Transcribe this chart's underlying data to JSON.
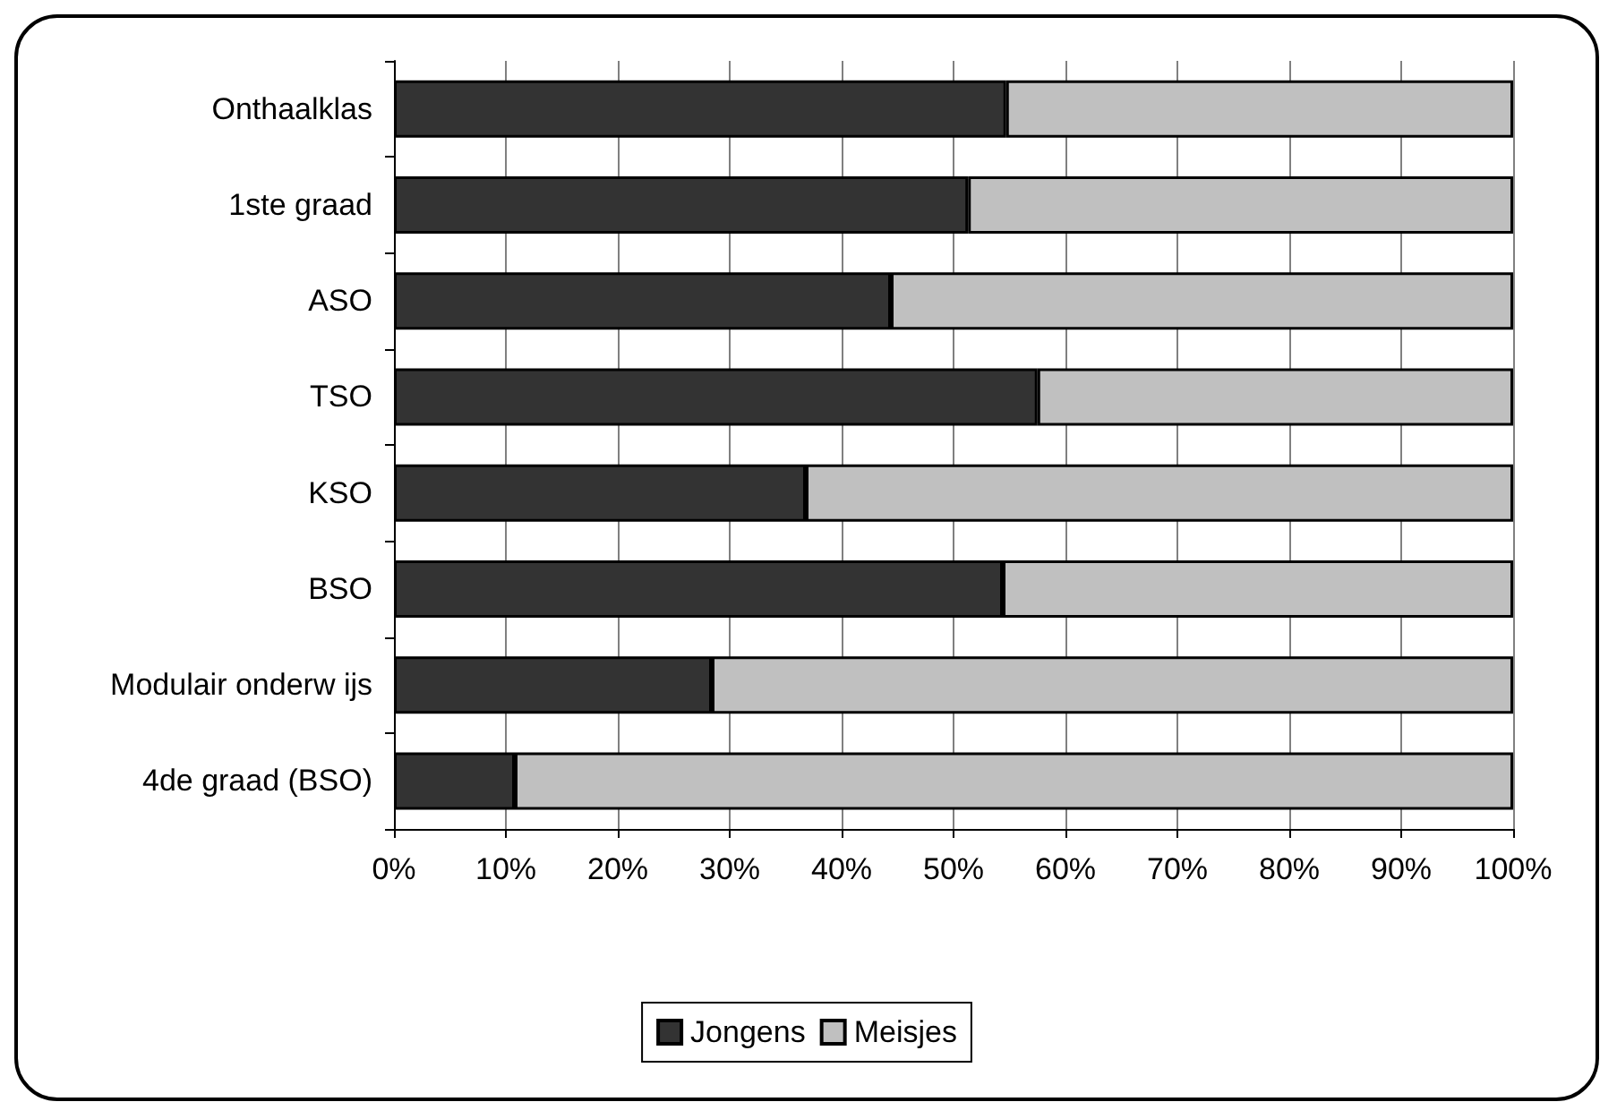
{
  "chart_data": {
    "type": "bar",
    "orientation": "horizontal",
    "stacked": true,
    "categories": [
      "Onthaalklas",
      "1ste graad",
      "ASO",
      "TSO",
      "KSO",
      "BSO",
      "Modulair onderw ijs",
      "4de graad (BSO)"
    ],
    "series": [
      {
        "name": "Jongens",
        "color": "#333333",
        "values": [
          54.7,
          51.3,
          44.4,
          57.5,
          36.8,
          54.4,
          28.4,
          10.8
        ]
      },
      {
        "name": "Meisjes",
        "color": "#c0c0c0",
        "values": [
          45.3,
          48.7,
          55.6,
          42.5,
          63.2,
          45.6,
          71.6,
          89.2
        ]
      }
    ],
    "xlim": [
      0,
      100
    ],
    "xticks": [
      {
        "value": 0,
        "label": "0%"
      },
      {
        "value": 10,
        "label": "10%"
      },
      {
        "value": 20,
        "label": "20%"
      },
      {
        "value": 30,
        "label": "30%"
      },
      {
        "value": 40,
        "label": "40%"
      },
      {
        "value": 50,
        "label": "50%"
      },
      {
        "value": 60,
        "label": "60%"
      },
      {
        "value": 70,
        "label": "70%"
      },
      {
        "value": 80,
        "label": "80%"
      },
      {
        "value": 90,
        "label": "90%"
      },
      {
        "value": 100,
        "label": "100%"
      }
    ],
    "grid": "x",
    "legend": "bottom"
  }
}
